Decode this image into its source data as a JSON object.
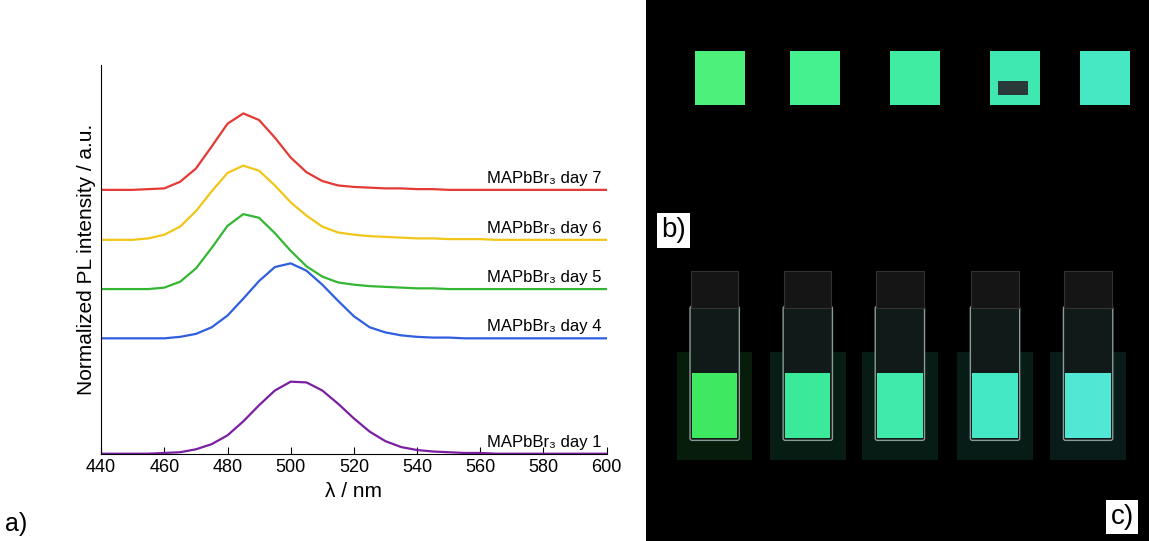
{
  "chart_data": {
    "type": "line",
    "x_label": "λ / nm",
    "y_label": "Normalized PL intensity / a.u.",
    "x": [
      440,
      445,
      450,
      455,
      460,
      465,
      470,
      475,
      480,
      485,
      490,
      495,
      500,
      505,
      510,
      515,
      520,
      525,
      530,
      535,
      540,
      545,
      550,
      555,
      560,
      565,
      570,
      575,
      580,
      585,
      590,
      595,
      600
    ],
    "series": [
      {
        "name": "MAPbBr₃ day 1",
        "color": "#7b1fa2",
        "values": [
          0.01,
          0.01,
          0.01,
          0.01,
          0.02,
          0.03,
          0.07,
          0.14,
          0.26,
          0.45,
          0.67,
          0.87,
          0.99,
          0.98,
          0.87,
          0.69,
          0.49,
          0.31,
          0.18,
          0.1,
          0.06,
          0.04,
          0.03,
          0.02,
          0.02,
          0.01,
          0.01,
          0.01,
          0.01,
          0.01,
          0.01,
          0.01,
          0.01
        ]
      },
      {
        "name": "MAPbBr₃ day 4",
        "color": "#2f5ee0",
        "values": [
          1.58,
          1.58,
          1.58,
          1.58,
          1.58,
          1.6,
          1.64,
          1.73,
          1.89,
          2.12,
          2.36,
          2.55,
          2.6,
          2.5,
          2.31,
          2.09,
          1.88,
          1.73,
          1.66,
          1.62,
          1.6,
          1.59,
          1.59,
          1.58,
          1.58,
          1.58,
          1.58,
          1.58,
          1.58,
          1.58,
          1.58,
          1.58,
          1.58
        ]
      },
      {
        "name": "MAPbBr₃ day 5",
        "color": "#33b733",
        "values": [
          2.25,
          2.25,
          2.25,
          2.25,
          2.27,
          2.35,
          2.53,
          2.81,
          3.11,
          3.27,
          3.22,
          3.01,
          2.77,
          2.56,
          2.42,
          2.34,
          2.31,
          2.29,
          2.28,
          2.27,
          2.26,
          2.26,
          2.25,
          2.25,
          2.25,
          2.25,
          2.25,
          2.25,
          2.25,
          2.25,
          2.25,
          2.25,
          2.25
        ]
      },
      {
        "name": "MAPbBr₃ day 6",
        "color": "#f2c618",
        "values": [
          2.92,
          2.92,
          2.92,
          2.94,
          2.99,
          3.1,
          3.31,
          3.58,
          3.83,
          3.93,
          3.86,
          3.66,
          3.43,
          3.25,
          3.1,
          3.02,
          2.99,
          2.97,
          2.96,
          2.95,
          2.94,
          2.94,
          2.93,
          2.93,
          2.93,
          2.92,
          2.92,
          2.92,
          2.92,
          2.92,
          2.92,
          2.92,
          2.92
        ]
      },
      {
        "name": "MAPbBr₃ day 7",
        "color": "#e53935",
        "values": [
          3.6,
          3.6,
          3.6,
          3.61,
          3.62,
          3.71,
          3.89,
          4.19,
          4.5,
          4.64,
          4.55,
          4.31,
          4.04,
          3.84,
          3.72,
          3.66,
          3.64,
          3.63,
          3.62,
          3.62,
          3.61,
          3.61,
          3.6,
          3.6,
          3.6,
          3.6,
          3.6,
          3.6,
          3.6,
          3.6,
          3.6,
          3.6,
          3.6
        ]
      }
    ],
    "xlim": [
      440,
      600
    ],
    "xticks": [
      440,
      460,
      480,
      500,
      520,
      540,
      560,
      580,
      600
    ],
    "ylim": [
      0,
      5.3
    ],
    "yticks": [],
    "tick_labels": "x"
  },
  "panel_labels": [
    "a)",
    "b)",
    "c)"
  ]
}
